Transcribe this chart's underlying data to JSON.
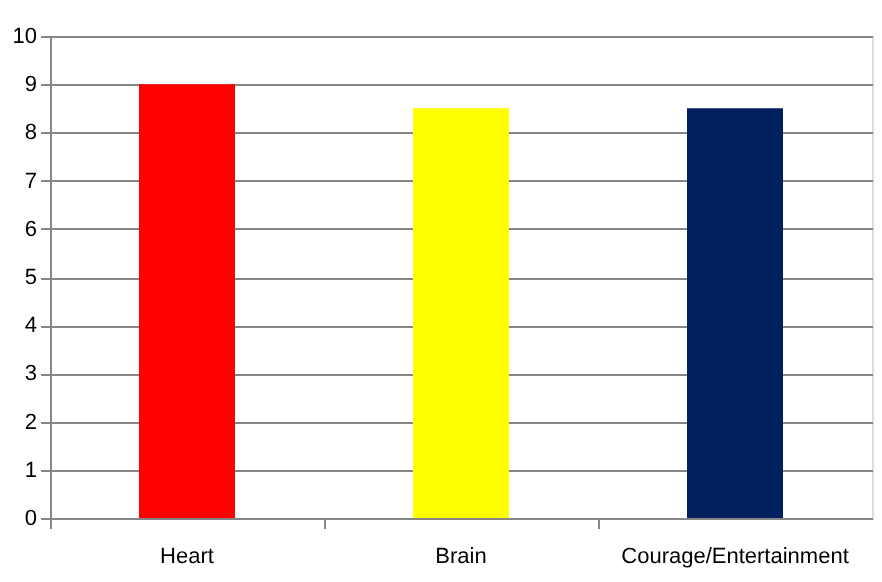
{
  "chart_data": {
    "type": "bar",
    "categories": [
      "Heart",
      "Brain",
      "Courage/Entertainment"
    ],
    "values": [
      9,
      8.5,
      8.5
    ],
    "colors": [
      "#ff0000",
      "#ffff00",
      "#002060"
    ],
    "ylim": [
      0,
      10
    ],
    "yticks": [
      0,
      1,
      2,
      3,
      4,
      5,
      6,
      7,
      8,
      9,
      10
    ],
    "grid": "y"
  }
}
